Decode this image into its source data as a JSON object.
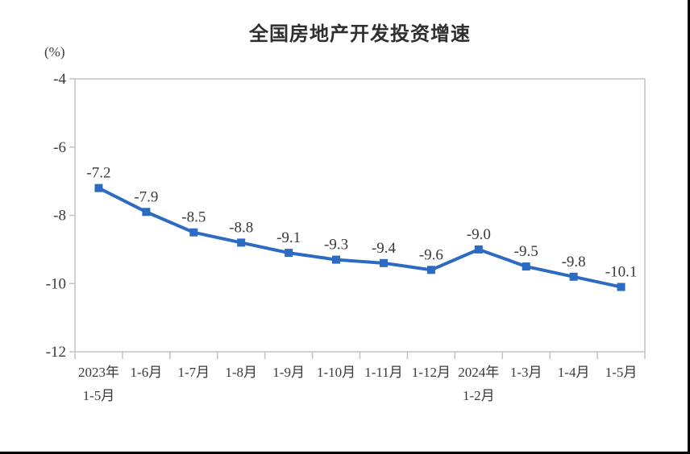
{
  "chart_data": {
    "type": "line",
    "title": "全国房地产开发投资增速",
    "ylabel": "(%)",
    "categories": [
      "2023年\n1-5月",
      "1-6月",
      "1-7月",
      "1-8月",
      "1-9月",
      "1-10月",
      "1-11月",
      "1-12月",
      "2024年\n1-2月",
      "1-3月",
      "1-4月",
      "1-5月"
    ],
    "values": [
      -7.2,
      -7.9,
      -8.5,
      -8.8,
      -9.1,
      -9.3,
      -9.4,
      -9.6,
      -9.0,
      -9.5,
      -9.8,
      -10.1
    ],
    "data_labels": [
      "-7.2",
      "-7.9",
      "-8.5",
      "-8.8",
      "-9.1",
      "-9.3",
      "-9.4",
      "-9.6",
      "-9.0",
      "-9.5",
      "-9.8",
      "-10.1"
    ],
    "y_ticks": {
      "values": [
        -4,
        -6,
        -8,
        -10,
        -12
      ],
      "labels": [
        "-4",
        "-6",
        "-8",
        "-10",
        "-12"
      ]
    },
    "ylim": [
      -12,
      -4
    ],
    "grid": "off",
    "legend": "none",
    "colors": {
      "line": "#2d6ac2",
      "marker": "#2d6ac2",
      "text": "#3a3a3a",
      "axis": "#c2c2c2",
      "title": "#2f2f2f",
      "page_border": "#000000",
      "background": "#ffffff"
    }
  }
}
